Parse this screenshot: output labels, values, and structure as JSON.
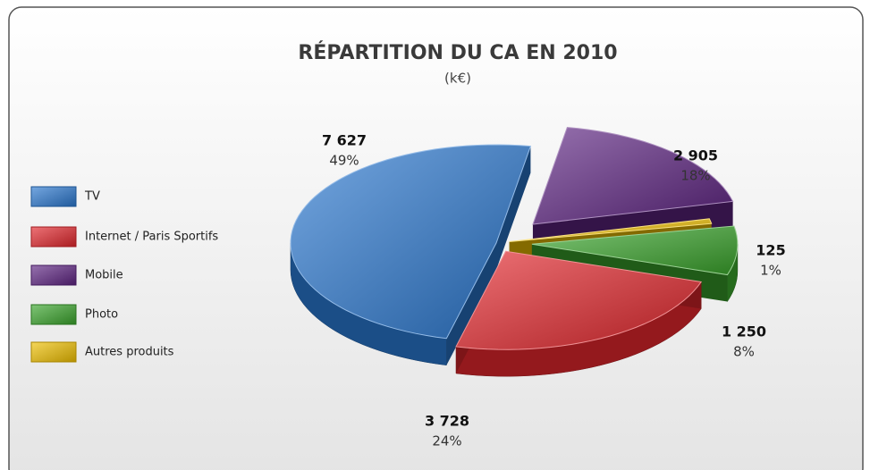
{
  "chart_data": {
    "type": "pie3d",
    "title": "RÉPARTITION DU CA EN 2010",
    "subtitle": "(k€)",
    "categories": [
      "TV",
      "Internet / Paris Sportifs",
      "Mobile",
      "Photo",
      "Autres produits"
    ],
    "values": [
      7627,
      3728,
      2905,
      1250,
      125
    ],
    "value_labels": [
      "7 627",
      "3 728",
      "2 905",
      "1 250",
      "125"
    ],
    "percent_labels": [
      "49%",
      "24%",
      "18%",
      "8%",
      "1%"
    ],
    "colors": [
      "#2a78d0",
      "#e3262c",
      "#5e2483",
      "#3aa52c",
      "#f0c000"
    ],
    "legend": "left"
  }
}
